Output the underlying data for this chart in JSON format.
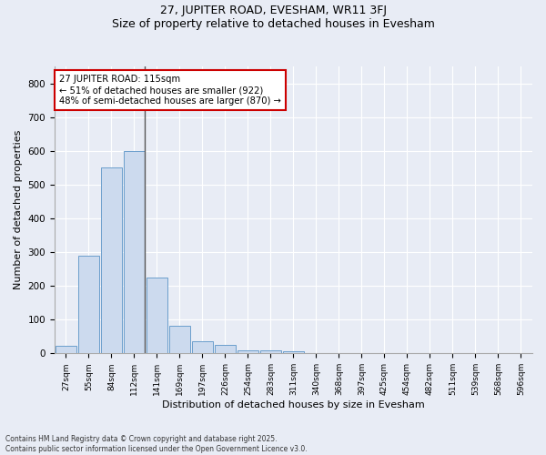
{
  "title": "27, JUPITER ROAD, EVESHAM, WR11 3FJ",
  "subtitle": "Size of property relative to detached houses in Evesham",
  "xlabel": "Distribution of detached houses by size in Evesham",
  "ylabel": "Number of detached properties",
  "bar_color": "#ccdaee",
  "bar_edge_color": "#6b9ecc",
  "background_color": "#e8ecf5",
  "grid_color": "#ffffff",
  "categories": [
    "27sqm",
    "55sqm",
    "84sqm",
    "112sqm",
    "141sqm",
    "169sqm",
    "197sqm",
    "226sqm",
    "254sqm",
    "283sqm",
    "311sqm",
    "340sqm",
    "368sqm",
    "397sqm",
    "425sqm",
    "454sqm",
    "482sqm",
    "511sqm",
    "539sqm",
    "568sqm",
    "596sqm"
  ],
  "values": [
    22,
    290,
    550,
    600,
    225,
    82,
    35,
    25,
    10,
    8,
    5,
    0,
    0,
    0,
    0,
    0,
    0,
    0,
    0,
    0,
    0
  ],
  "ylim": [
    0,
    850
  ],
  "yticks": [
    0,
    100,
    200,
    300,
    400,
    500,
    600,
    700,
    800
  ],
  "vline_index": 3,
  "annotation_line1": "27 JUPITER ROAD: 115sqm",
  "annotation_line2": "← 51% of detached houses are smaller (922)",
  "annotation_line3": "48% of semi-detached houses are larger (870) →",
  "annotation_box_color": "#ffffff",
  "annotation_box_edgecolor": "#cc0000",
  "footer_line1": "Contains HM Land Registry data © Crown copyright and database right 2025.",
  "footer_line2": "Contains public sector information licensed under the Open Government Licence v3.0."
}
